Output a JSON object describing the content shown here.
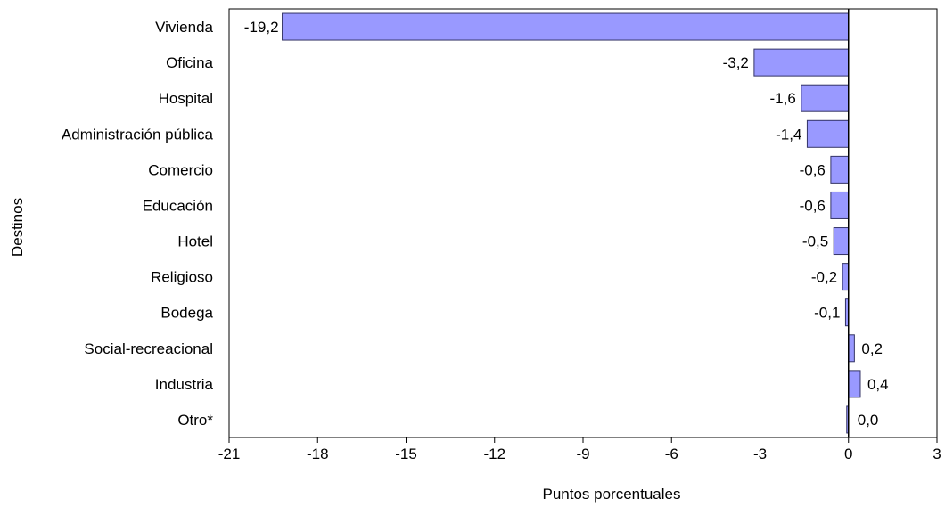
{
  "chart_data": {
    "type": "bar",
    "orientation": "horizontal",
    "categories": [
      "Vivienda",
      "Oficina",
      "Hospital",
      "Administración pública",
      "Comercio",
      "Educación",
      "Hotel",
      "Religioso",
      "Bodega",
      "Social-recreacional",
      "Industria",
      "Otro*"
    ],
    "values": [
      -19.2,
      -3.2,
      -1.6,
      -1.4,
      -0.6,
      -0.6,
      -0.5,
      -0.2,
      -0.1,
      0.2,
      0.4,
      0.0
    ],
    "data_labels": [
      "-19,2",
      "-3,2",
      "-1,6",
      "-1,4",
      "-0,6",
      "-0,6",
      "-0,5",
      "-0,2",
      "-0,1",
      "0,2",
      "0,4",
      "0,0"
    ],
    "xlabel": "Puntos  porcentuales",
    "ylabel": "Destinos",
    "xlim": [
      -21,
      3
    ],
    "xticks": [
      -21,
      -18,
      -15,
      -12,
      -9,
      -6,
      -3,
      0,
      3
    ],
    "xtick_labels": [
      "-21",
      "-18",
      "-15",
      "-12",
      "-9",
      "-6",
      "-3",
      "0",
      "3"
    ],
    "grid": false,
    "bar_color": "#9999ff",
    "bar_edge_color": "#333366"
  }
}
